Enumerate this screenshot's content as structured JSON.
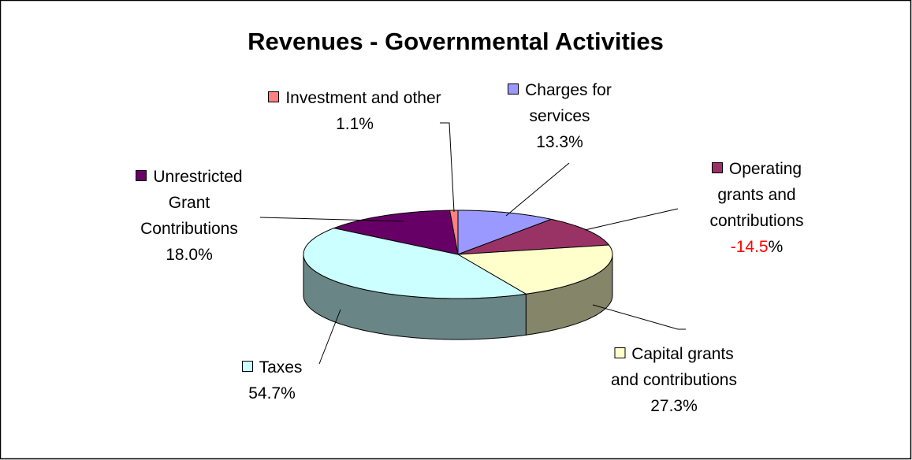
{
  "chart_data": {
    "type": "pie3d",
    "title": "Revenues - Governmental Activities",
    "categories": [
      "Charges for services",
      "Operating grants and contributions",
      "Capital grants and contributions",
      "Taxes",
      "Unrestricted Grant Contributions",
      "Investment and other"
    ],
    "values": [
      13.3,
      -14.5,
      27.3,
      54.7,
      18.0,
      1.1
    ],
    "value_labels": [
      "13.3%",
      "-14.5%",
      "27.3%",
      "54.7%",
      "18.0%",
      "1.1%"
    ],
    "colors": [
      "#9999ff",
      "#993366",
      "#ffffcc",
      "#ccffff",
      "#660066",
      "#ff8080"
    ],
    "negative_color": "#ff0000"
  }
}
